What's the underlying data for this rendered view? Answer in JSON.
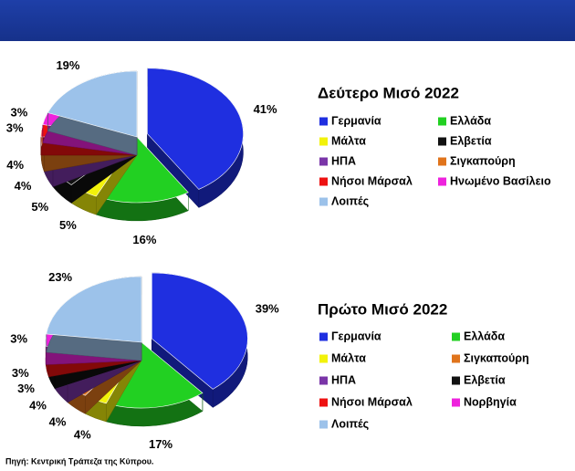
{
  "chart_data": [
    {
      "type": "pie",
      "title": "Δεύτερο Μισό 2022",
      "categories": [
        "Γερμανία",
        "Ελλάδα",
        "Μάλτα",
        "Ελβετία",
        "ΗΠΑ",
        "Σιγκαπούρη",
        "Νήσοι Μάρσαλ",
        "Ηνωμένο Βασίλειο",
        "Λοιπές"
      ],
      "values": [
        41,
        16,
        5,
        5,
        4,
        4,
        3,
        3,
        19
      ],
      "value_labels": [
        "41%",
        "16%",
        "5%",
        "5%",
        "4%",
        "4%",
        "3%",
        "3%",
        "19%"
      ],
      "colors": [
        "#1f2fe0",
        "#22d022",
        "#f2f20a",
        "#111111",
        "#7a35a8",
        "#e0741c",
        "#ee1111",
        "#ee22dd",
        "#9cc2ea"
      ]
    },
    {
      "type": "pie",
      "title": "Πρώτο Μισό 2022",
      "categories": [
        "Γερμανία",
        "Ελλάδα",
        "Μάλτα",
        "Σιγκαπούρη",
        "ΗΠΑ",
        "Ελβετία",
        "Νήσοι Μάρσαλ",
        "Νορβηγία",
        "Λοιπές"
      ],
      "values": [
        39,
        17,
        4,
        4,
        4,
        3,
        3,
        3,
        23
      ],
      "value_labels": [
        "39%",
        "17%",
        "4%",
        "4%",
        "4%",
        "3%",
        "3%",
        "3%",
        "23%"
      ],
      "colors": [
        "#1f2fe0",
        "#22d022",
        "#f2f20a",
        "#e0741c",
        "#7a35a8",
        "#111111",
        "#ee1111",
        "#ee22dd",
        "#9cc2ea"
      ]
    }
  ],
  "source": "Πηγή: Κεντρική Τράπεζα της Κύπρου."
}
